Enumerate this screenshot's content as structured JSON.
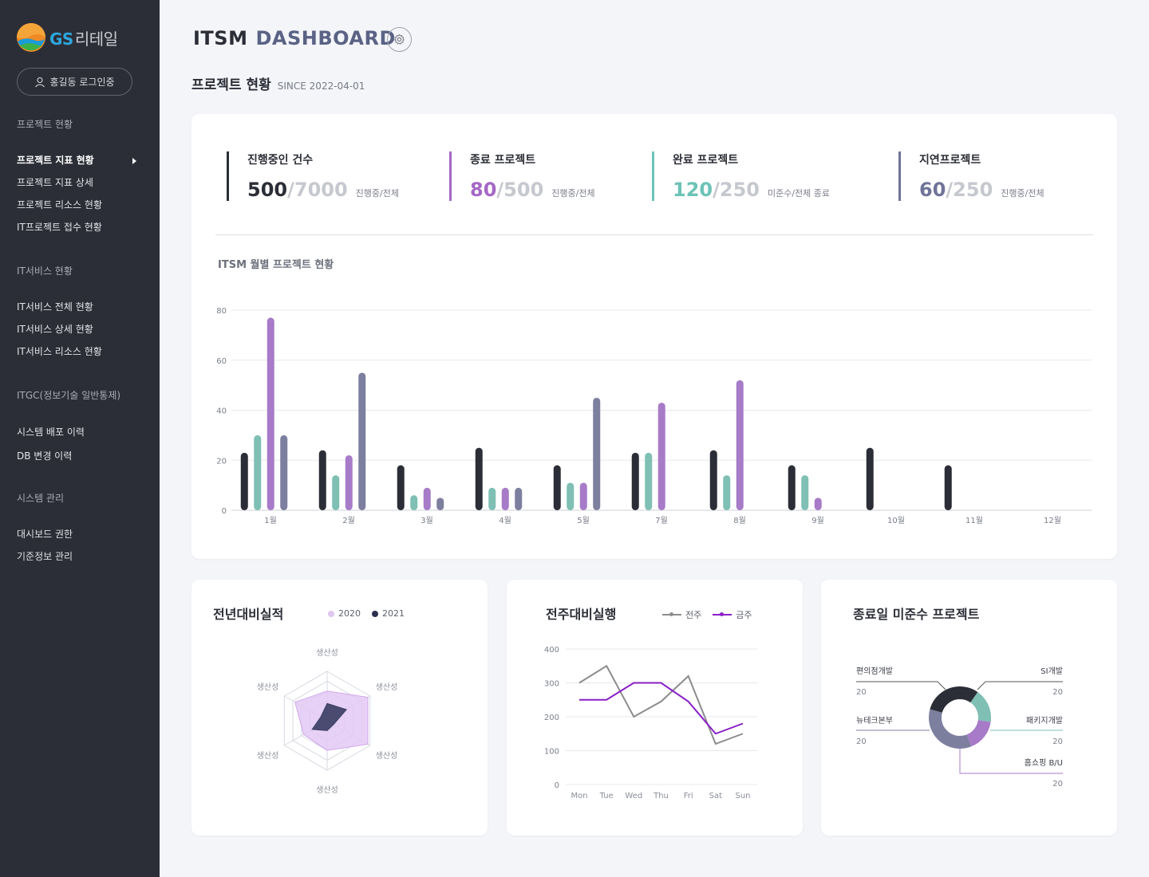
{
  "brand": {
    "latin": "GS",
    "korean": "리테일"
  },
  "user": {
    "login_label": "홍길동 로그인중"
  },
  "sidebar": {
    "groups": [
      {
        "title": "프로젝트 현황",
        "items": [
          {
            "label": "프로젝트 지표 현황",
            "active": true
          },
          {
            "label": "프로젝트 지표 상세"
          },
          {
            "label": "프로젝트 리소스 현황"
          },
          {
            "label": "IT프로젝트 접수 현황"
          }
        ]
      },
      {
        "title": "IT서비스 현황",
        "items": [
          {
            "label": "IT서비스 전체 현황"
          },
          {
            "label": "IT서비스 상세 현황"
          },
          {
            "label": "IT서비스 리소스 현황"
          }
        ]
      },
      {
        "title": "ITGC(정보기술 일반통제)",
        "items": [
          {
            "label": "시스템 배포 이력"
          },
          {
            "label": "DB 변경 이력"
          }
        ]
      },
      {
        "title": "시스템 관리",
        "items": [
          {
            "label": "대시보드 권한"
          },
          {
            "label": "기준정보 관리"
          }
        ]
      }
    ]
  },
  "header": {
    "title_a": "ITSM",
    "title_b": "DASHBOARD",
    "section": "프로젝트 현황",
    "since": "SINCE 2022-04-01"
  },
  "kpis": [
    {
      "label": "진행중인 건수",
      "current": "500",
      "total": "/7000",
      "note": "진행중/전체",
      "color": "#2c2e37"
    },
    {
      "label": "종료 프로젝트",
      "current": "80",
      "total": "/500",
      "note": "진행중/전체",
      "color": "#a567c6"
    },
    {
      "label": "완료 프로젝트",
      "current": "120",
      "total": "/250",
      "note": "미준수/전체 종료",
      "color": "#6cc3b6"
    },
    {
      "label": "지연프로젝트",
      "current": "60",
      "total": "/250",
      "note": "진행중/전체",
      "color": "#6f7398"
    }
  ],
  "colors": {
    "dark": "#2c2e37",
    "teal": "#7fbfb4",
    "purple": "#a77bc8",
    "slate": "#7d7f9f",
    "line_this": "#8a1fc7",
    "line_prev": "#8c8c8c"
  },
  "chart_data": [
    {
      "type": "bar",
      "title": "ITSM 월별 프로젝트 현황",
      "categories": [
        "1월",
        "2월",
        "3월",
        "4월",
        "5월",
        "7월",
        "8월",
        "9월",
        "10월",
        "11월",
        "12월"
      ],
      "ylim": [
        0,
        80
      ],
      "yticks": [
        0,
        20,
        40,
        60,
        80
      ],
      "series": [
        {
          "values": [
            23,
            24,
            18,
            25,
            18,
            23,
            24,
            18,
            25,
            18,
            0
          ]
        },
        {
          "values": [
            30,
            14,
            6,
            9,
            11,
            23,
            14,
            14,
            0,
            0,
            0
          ]
        },
        {
          "values": [
            77,
            22,
            9,
            9,
            11,
            43,
            52,
            5,
            0,
            0,
            0
          ]
        },
        {
          "values": [
            30,
            55,
            5,
            9,
            45,
            0,
            0,
            0,
            0,
            0,
            0
          ]
        }
      ]
    },
    {
      "type": "radar",
      "title": "전년대비실적",
      "axes": [
        "생산성",
        "생산성",
        "생산성",
        "생산성",
        "생산성",
        "생산성"
      ],
      "series": [
        {
          "name": "2020",
          "values": [
            0.6,
            0.95,
            0.95,
            0.6,
            0.55,
            0.75
          ]
        },
        {
          "name": "2021",
          "values": [
            0.35,
            0.45,
            0.15,
            0.2,
            0.35,
            0.15
          ]
        }
      ]
    },
    {
      "type": "line",
      "title": "전주대비실행",
      "categories": [
        "Mon",
        "Tue",
        "Wed",
        "Thu",
        "Fri",
        "Sat",
        "Sun"
      ],
      "ylim": [
        0,
        400
      ],
      "yticks": [
        0,
        100,
        200,
        300,
        400
      ],
      "series": [
        {
          "name": "전주",
          "values": [
            300,
            350,
            200,
            245,
            320,
            120,
            150
          ]
        },
        {
          "name": "금주",
          "values": [
            250,
            250,
            300,
            300,
            245,
            150,
            180
          ]
        }
      ]
    },
    {
      "type": "pie",
      "title": "종료일 미준수 프로젝트",
      "categories": [
        "편의점개발",
        "SI개발",
        "뉴테크본부",
        "패키지개발",
        "홈쇼핑 B/U"
      ],
      "values": [
        20,
        20,
        20,
        20,
        20
      ]
    }
  ]
}
